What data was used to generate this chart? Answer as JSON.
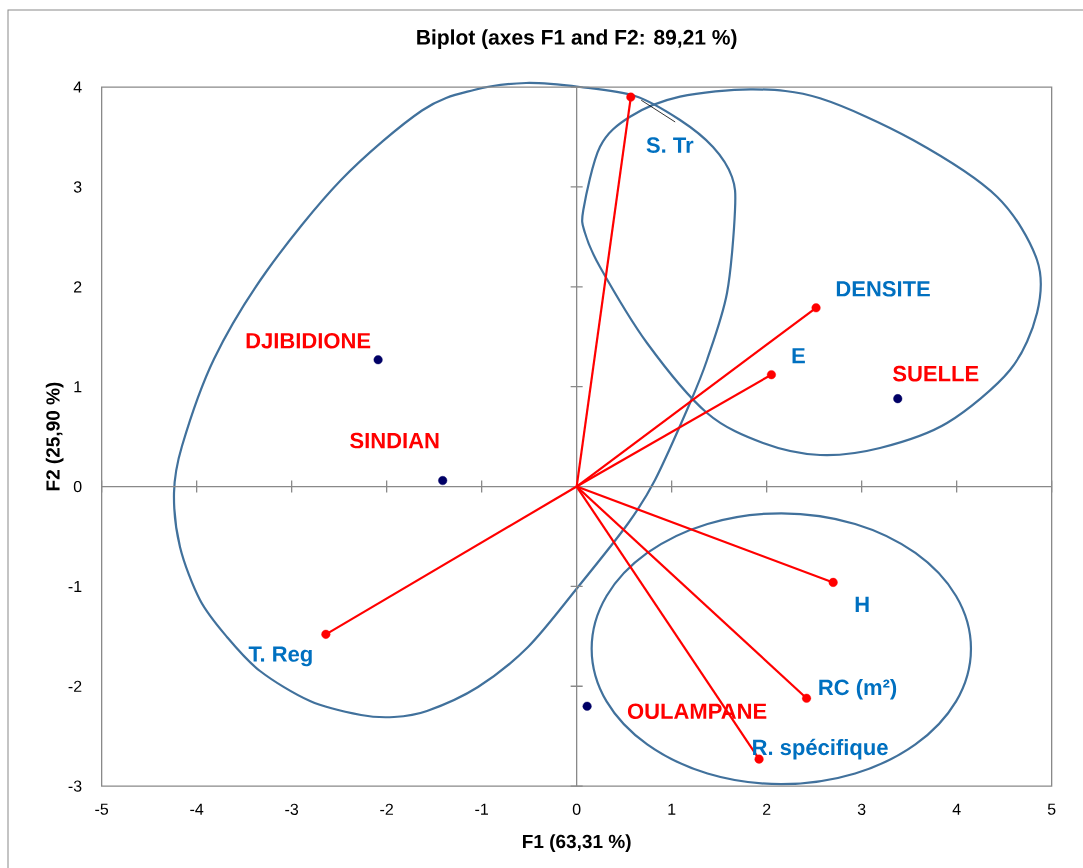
{
  "chart_data": {
    "type": "scatter",
    "title": "Biplot (axes F1 and F2: 89,21 %)",
    "xlabel": "F1 (63,31 %)",
    "ylabel": "F2 (25,90 %)",
    "xlim": [
      -5,
      5
    ],
    "ylim": [
      -3,
      4
    ],
    "xticks": [
      -5,
      -4,
      -3,
      -2,
      -1,
      0,
      1,
      2,
      3,
      4,
      5
    ],
    "yticks": [
      -3,
      -2,
      -1,
      0,
      1,
      2,
      3,
      4
    ],
    "annotations": [
      {
        "text": "DJIBIDIONE",
        "x": -2.09,
        "y": 1.27
      },
      {
        "text": "SINDIAN",
        "x": -1.41,
        "y": 0.06
      },
      {
        "text": "SUELLE",
        "x": 3.38,
        "y": 0.88
      },
      {
        "text": "OULAMPANE",
        "x": 0.11,
        "y": -2.2
      }
    ],
    "series": [
      {
        "color": "#000066",
        "marker": "circle",
        "x": [
          -2.09,
          -1.41,
          3.38,
          0.11
        ],
        "values": [
          1.27,
          0.06,
          0.88,
          -2.2
        ]
      },
      {
        "color": "#ff0000",
        "marker": "circle",
        "x": [
          0.57,
          2.52,
          2.05,
          2.7,
          2.42,
          1.92,
          -2.64
        ],
        "values": [
          3.9,
          1.79,
          1.12,
          -0.96,
          -2.12,
          -2.73,
          -1.48
        ]
      },
      {
        "name": "S. Tr",
        "type": "line",
        "color": "#ff0000",
        "x": [
          0,
          0.57
        ],
        "values": [
          0,
          3.9
        ]
      },
      {
        "name": "DENSITE",
        "type": "line",
        "color": "#ff0000",
        "x": [
          0,
          2.52
        ],
        "values": [
          0,
          1.79
        ]
      },
      {
        "name": "E",
        "type": "line",
        "color": "#ff0000",
        "x": [
          0,
          2.05
        ],
        "values": [
          0,
          1.12
        ]
      },
      {
        "name": "H",
        "type": "line",
        "color": "#ff0000",
        "x": [
          0,
          2.7
        ],
        "values": [
          0,
          -0.96
        ]
      },
      {
        "name": "RC (m²)",
        "type": "line",
        "color": "#ff0000",
        "x": [
          0,
          2.42
        ],
        "values": [
          0,
          -2.12
        ]
      },
      {
        "name": "R. spécifique",
        "type": "line",
        "color": "#ff0000",
        "x": [
          0,
          1.92
        ],
        "values": [
          0,
          -2.73
        ]
      },
      {
        "name": "T. Reg",
        "type": "line",
        "color": "#ff0000",
        "x": [
          0,
          -2.64
        ],
        "values": [
          0,
          -1.48
        ]
      }
    ]
  }
}
